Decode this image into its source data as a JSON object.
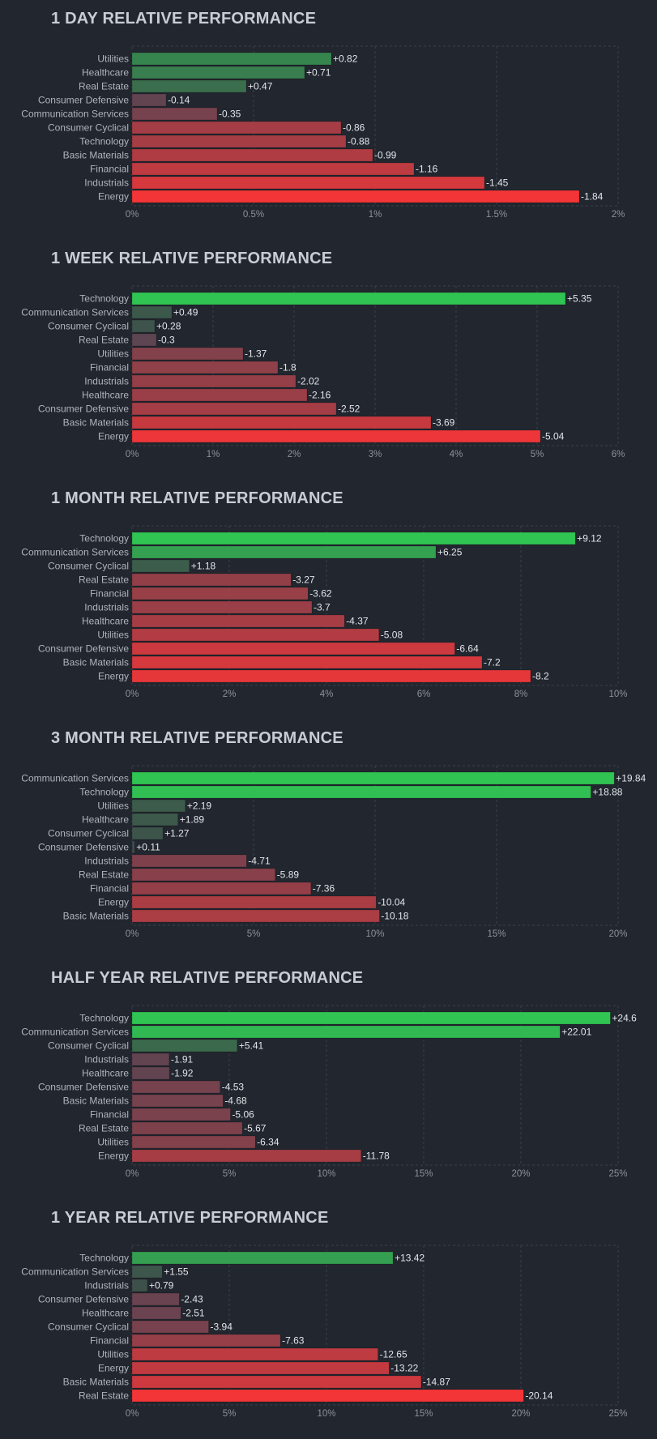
{
  "colors": {
    "background": "#22262e",
    "positive_strong": "#30c453",
    "negative_strong": "#f43537"
  },
  "chart_data": [
    {
      "type": "bar",
      "orientation": "horizontal",
      "title": "1 DAY RELATIVE PERFORMANCE",
      "categories": [
        "Utilities",
        "Healthcare",
        "Real Estate",
        "Consumer Defensive",
        "Communication Services",
        "Consumer Cyclical",
        "Technology",
        "Basic Materials",
        "Financial",
        "Industrials",
        "Energy"
      ],
      "values": [
        0.82,
        0.71,
        0.47,
        -0.14,
        -0.35,
        -0.86,
        -0.88,
        -0.99,
        -1.16,
        -1.45,
        -1.84
      ],
      "value_labels": [
        "+0.82",
        "+0.71",
        "+0.47",
        "-0.14",
        "-0.35",
        "-0.86",
        "-0.88",
        "-0.99",
        "-1.16",
        "-1.45",
        "-1.84"
      ],
      "xlim": [
        0,
        2
      ],
      "xticks": [
        0,
        0.5,
        1,
        1.5,
        2
      ],
      "xtick_labels": [
        "0%",
        "0.5%",
        "1%",
        "1.5%",
        "2%"
      ],
      "grid": true
    },
    {
      "type": "bar",
      "orientation": "horizontal",
      "title": "1 WEEK RELATIVE PERFORMANCE",
      "categories": [
        "Technology",
        "Communication Services",
        "Consumer Cyclical",
        "Real Estate",
        "Utilities",
        "Financial",
        "Industrials",
        "Healthcare",
        "Consumer Defensive",
        "Basic Materials",
        "Energy"
      ],
      "values": [
        5.35,
        0.49,
        0.28,
        -0.3,
        -1.37,
        -1.8,
        -2.02,
        -2.16,
        -2.52,
        -3.69,
        -5.04
      ],
      "value_labels": [
        "+5.35",
        "+0.49",
        "+0.28",
        "-0.3",
        "-1.37",
        "-1.8",
        "-2.02",
        "-2.16",
        "-2.52",
        "-3.69",
        "-5.04"
      ],
      "xlim": [
        0,
        6
      ],
      "xticks": [
        0,
        1,
        2,
        3,
        4,
        5,
        6
      ],
      "xtick_labels": [
        "0%",
        "1%",
        "2%",
        "3%",
        "4%",
        "5%",
        "6%"
      ],
      "grid": true
    },
    {
      "type": "bar",
      "orientation": "horizontal",
      "title": "1 MONTH RELATIVE PERFORMANCE",
      "categories": [
        "Technology",
        "Communication Services",
        "Consumer Cyclical",
        "Real Estate",
        "Financial",
        "Industrials",
        "Healthcare",
        "Utilities",
        "Consumer Defensive",
        "Basic Materials",
        "Energy"
      ],
      "values": [
        9.12,
        6.25,
        1.18,
        -3.27,
        -3.62,
        -3.7,
        -4.37,
        -5.08,
        -6.64,
        -7.2,
        -8.2
      ],
      "value_labels": [
        "+9.12",
        "+6.25",
        "+1.18",
        "-3.27",
        "-3.62",
        "-3.7",
        "-4.37",
        "-5.08",
        "-6.64",
        "-7.2",
        "-8.2"
      ],
      "xlim": [
        0,
        10
      ],
      "xticks": [
        0,
        2,
        4,
        6,
        8,
        10
      ],
      "xtick_labels": [
        "0%",
        "2%",
        "4%",
        "6%",
        "8%",
        "10%"
      ],
      "grid": true
    },
    {
      "type": "bar",
      "orientation": "horizontal",
      "title": "3 MONTH RELATIVE PERFORMANCE",
      "categories": [
        "Communication Services",
        "Technology",
        "Utilities",
        "Healthcare",
        "Consumer Cyclical",
        "Consumer Defensive",
        "Industrials",
        "Real Estate",
        "Financial",
        "Energy",
        "Basic Materials"
      ],
      "values": [
        19.84,
        18.88,
        2.19,
        1.89,
        1.27,
        0.11,
        -4.71,
        -5.89,
        -7.36,
        -10.04,
        -10.18
      ],
      "value_labels": [
        "+19.84",
        "+18.88",
        "+2.19",
        "+1.89",
        "+1.27",
        "+0.11",
        "-4.71",
        "-5.89",
        "-7.36",
        "-10.04",
        "-10.18"
      ],
      "xlim": [
        0,
        20
      ],
      "xticks": [
        0,
        5,
        10,
        15,
        20
      ],
      "xtick_labels": [
        "0%",
        "5%",
        "10%",
        "15%",
        "20%"
      ],
      "grid": true
    },
    {
      "type": "bar",
      "orientation": "horizontal",
      "title": "HALF YEAR RELATIVE PERFORMANCE",
      "categories": [
        "Technology",
        "Communication Services",
        "Consumer Cyclical",
        "Industrials",
        "Healthcare",
        "Consumer Defensive",
        "Basic Materials",
        "Financial",
        "Real Estate",
        "Utilities",
        "Energy"
      ],
      "values": [
        24.6,
        22.01,
        5.41,
        -1.91,
        -1.92,
        -4.53,
        -4.68,
        -5.06,
        -5.67,
        -6.34,
        -11.78
      ],
      "value_labels": [
        "+24.6",
        "+22.01",
        "+5.41",
        "-1.91",
        "-1.92",
        "-4.53",
        "-4.68",
        "-5.06",
        "-5.67",
        "-6.34",
        "-11.78"
      ],
      "xlim": [
        0,
        25
      ],
      "xticks": [
        0,
        5,
        10,
        15,
        20,
        25
      ],
      "xtick_labels": [
        "0%",
        "5%",
        "10%",
        "15%",
        "20%",
        "25%"
      ],
      "grid": true
    },
    {
      "type": "bar",
      "orientation": "horizontal",
      "title": "1 YEAR RELATIVE PERFORMANCE",
      "categories": [
        "Technology",
        "Communication Services",
        "Industrials",
        "Consumer Defensive",
        "Healthcare",
        "Consumer Cyclical",
        "Financial",
        "Utilities",
        "Energy",
        "Basic Materials",
        "Real Estate"
      ],
      "values": [
        13.42,
        1.55,
        0.79,
        -2.43,
        -2.51,
        -3.94,
        -7.63,
        -12.65,
        -13.22,
        -14.87,
        -20.14
      ],
      "value_labels": [
        "+13.42",
        "+1.55",
        "+0.79",
        "-2.43",
        "-2.51",
        "-3.94",
        "-7.63",
        "-12.65",
        "-13.22",
        "-14.87",
        "-20.14"
      ],
      "xlim": [
        0,
        25
      ],
      "xticks": [
        0,
        5,
        10,
        15,
        20,
        25
      ],
      "xtick_labels": [
        "0%",
        "5%",
        "10%",
        "15%",
        "20%",
        "25%"
      ],
      "grid": true
    }
  ]
}
